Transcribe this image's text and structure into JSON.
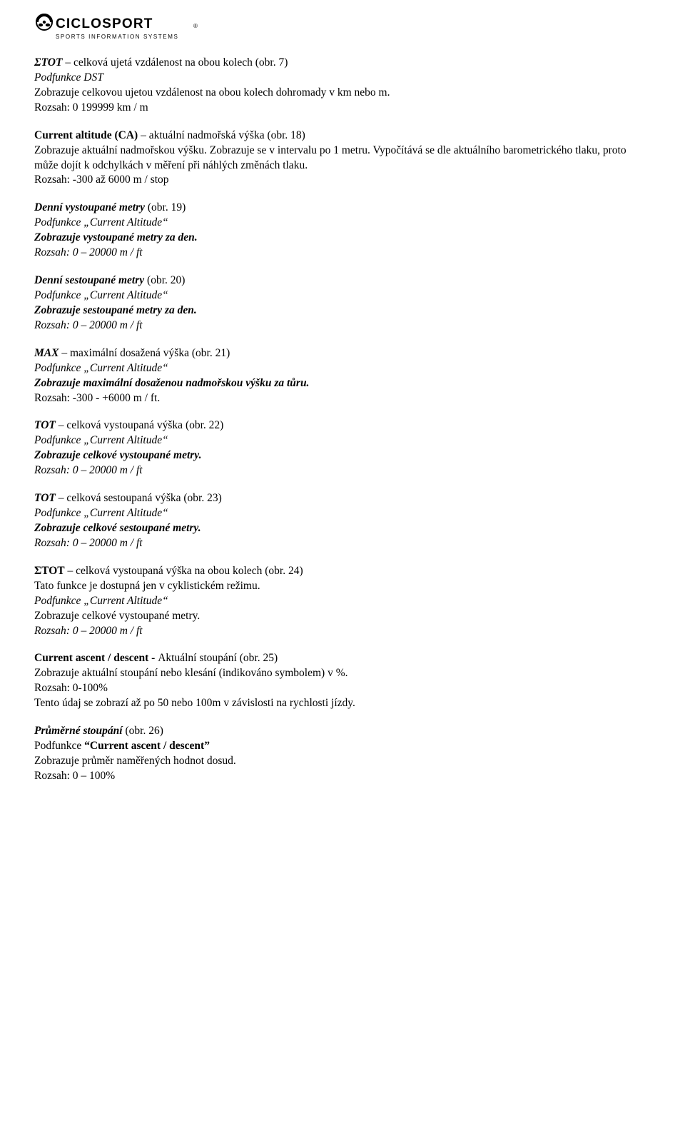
{
  "logo": {
    "brand_top": "CICLOSPORT",
    "brand_sub": "SPORTS INFORMATION SYSTEMS",
    "text_color": "#000000"
  },
  "sections": [
    {
      "lines": [
        {
          "cls": "line",
          "segs": [
            {
              "t": "ΣTOT",
              "cls": "bi"
            },
            {
              "t": " – celková ujetá vzdálenost na obou kolech (obr. 7)",
              "cls": ""
            }
          ]
        },
        {
          "cls": "line",
          "segs": [
            {
              "t": "Podfunkce DST",
              "cls": "i"
            }
          ]
        },
        {
          "cls": "line",
          "segs": [
            {
              "t": "Zobrazuje celkovou ujetou vzdálenost na obou kolech dohromady v km nebo m.",
              "cls": ""
            }
          ]
        },
        {
          "cls": "line",
          "segs": [
            {
              "t": "Rozsah: 0 199999 km / m",
              "cls": ""
            }
          ]
        }
      ]
    },
    {
      "lines": [
        {
          "cls": "line",
          "segs": [
            {
              "t": "Current altitude (CA)",
              "cls": "b"
            },
            {
              "t": " – aktuální nadmořská výška (obr. 18)",
              "cls": ""
            }
          ]
        },
        {
          "cls": "line",
          "segs": [
            {
              "t": "Zobrazuje aktuální nadmořskou výšku. Zobrazuje se v intervalu po 1 metru. Vypočítává se dle aktuálního barometrického tlaku, proto může dojít k odchylkách v měření při náhlých změnách tlaku.",
              "cls": ""
            }
          ]
        },
        {
          "cls": "line",
          "segs": [
            {
              "t": "Rozsah: -300 až 6000 m / stop",
              "cls": ""
            }
          ]
        }
      ]
    },
    {
      "lines": [
        {
          "cls": "line",
          "segs": [
            {
              "t": "Denní vystoupané metry",
              "cls": "bi"
            },
            {
              "t": " (obr. 19)",
              "cls": ""
            }
          ]
        },
        {
          "cls": "line",
          "segs": [
            {
              "t": "Podfunkce „Current Altitude“",
              "cls": "i"
            }
          ]
        },
        {
          "cls": "line",
          "segs": [
            {
              "t": "Zobrazuje vystoupané metry za den.",
              "cls": "bi"
            }
          ]
        },
        {
          "cls": "line",
          "segs": [
            {
              "t": "Rozsah: 0 – 20000 m / ft",
              "cls": "i"
            }
          ]
        }
      ]
    },
    {
      "lines": [
        {
          "cls": "line",
          "segs": [
            {
              "t": "Denní sestoupané metry",
              "cls": "bi"
            },
            {
              "t": " (obr. 20)",
              "cls": ""
            }
          ]
        },
        {
          "cls": "line",
          "segs": [
            {
              "t": "Podfunkce „Current Altitude“",
              "cls": "i"
            }
          ]
        },
        {
          "cls": "line",
          "segs": [
            {
              "t": "Zobrazuje sestoupané metry za den.",
              "cls": "bi"
            }
          ]
        },
        {
          "cls": "line",
          "segs": [
            {
              "t": "Rozsah: 0 – 20000 m / ft",
              "cls": "i"
            }
          ]
        }
      ]
    },
    {
      "lines": [
        {
          "cls": "line",
          "segs": [
            {
              "t": "MAX",
              "cls": "bi"
            },
            {
              "t": " – maximální dosažená výška (obr. 21)",
              "cls": ""
            }
          ]
        },
        {
          "cls": "line",
          "segs": [
            {
              "t": "Podfunkce „Current Altitude“",
              "cls": "i"
            }
          ]
        },
        {
          "cls": "line",
          "segs": [
            {
              "t": "Zobrazuje maximální dosaženou nadmořskou výšku za tůru.",
              "cls": "bi"
            }
          ]
        },
        {
          "cls": "line",
          "segs": [
            {
              "t": "Rozsah: -300 - +6000 m / ft.",
              "cls": ""
            }
          ]
        }
      ]
    },
    {
      "lines": [
        {
          "cls": "line",
          "segs": [
            {
              "t": "TOT",
              "cls": "bi"
            },
            {
              "t": " – celková vystoupaná výška (obr. 22)",
              "cls": ""
            }
          ]
        },
        {
          "cls": "line",
          "segs": [
            {
              "t": "Podfunkce „Current Altitude“",
              "cls": "i"
            }
          ]
        },
        {
          "cls": "line",
          "segs": [
            {
              "t": "Zobrazuje celkové vystoupané metry.",
              "cls": "bi"
            }
          ]
        },
        {
          "cls": "line",
          "segs": [
            {
              "t": "Rozsah: 0 – 20000 m / ft",
              "cls": "i"
            }
          ]
        }
      ]
    },
    {
      "lines": [
        {
          "cls": "line",
          "segs": [
            {
              "t": "TOT",
              "cls": "bi"
            },
            {
              "t": " – celková sestoupaná výška (obr. 23)",
              "cls": ""
            }
          ]
        },
        {
          "cls": "line",
          "segs": [
            {
              "t": "Podfunkce „Current Altitude“",
              "cls": "i"
            }
          ]
        },
        {
          "cls": "line",
          "segs": [
            {
              "t": "Zobrazuje celkové sestoupané metry.",
              "cls": "bi"
            }
          ]
        },
        {
          "cls": "line",
          "segs": [
            {
              "t": "Rozsah: 0 – 20000 m / ft",
              "cls": "i"
            }
          ]
        }
      ]
    },
    {
      "lines": [
        {
          "cls": "line",
          "segs": [
            {
              "t": "ΣTOT",
              "cls": "b"
            },
            {
              "t": " – celková vystoupaná výška na obou kolech (obr. 24)",
              "cls": ""
            }
          ]
        },
        {
          "cls": "line",
          "segs": [
            {
              "t": "Tato funkce je dostupná jen v cyklistickém režimu.",
              "cls": ""
            }
          ]
        },
        {
          "cls": "line",
          "segs": [
            {
              "t": "Podfunkce „Current Altitude“",
              "cls": "i"
            }
          ]
        },
        {
          "cls": "line",
          "segs": [
            {
              "t": "Zobrazuje celkové vystoupané metry.",
              "cls": ""
            }
          ]
        },
        {
          "cls": "line",
          "segs": [
            {
              "t": "Rozsah: 0 – 20000 m / ft",
              "cls": "i"
            }
          ]
        }
      ]
    },
    {
      "lines": [
        {
          "cls": "line",
          "segs": [
            {
              "t": "Current ascent / descent - ",
              "cls": "b"
            },
            {
              "t": "Aktuální stoupání (obr. 25)",
              "cls": ""
            }
          ]
        },
        {
          "cls": "line",
          "segs": [
            {
              "t": "Zobrazuje aktuální stoupání nebo klesání (indikováno symbolem) v %.",
              "cls": ""
            }
          ]
        },
        {
          "cls": "line",
          "segs": [
            {
              "t": "Rozsah: 0-100%",
              "cls": ""
            }
          ]
        },
        {
          "cls": "line",
          "segs": [
            {
              "t": "Tento údaj se zobrazí až po 50 nebo 100m v závislosti na rychlosti jízdy.",
              "cls": ""
            }
          ]
        }
      ]
    },
    {
      "lines": [
        {
          "cls": "line",
          "segs": [
            {
              "t": "Průměrné stoupání",
              "cls": "bi"
            },
            {
              "t": " (obr. 26)",
              "cls": ""
            }
          ]
        },
        {
          "cls": "line",
          "segs": [
            {
              "t": "Podfunkce ",
              "cls": ""
            },
            {
              "t": "“Current ascent / descent”",
              "cls": "b"
            }
          ]
        },
        {
          "cls": "line",
          "segs": [
            {
              "t": "Zobrazuje průměr naměřených hodnot dosud.",
              "cls": ""
            }
          ]
        },
        {
          "cls": "line",
          "segs": [
            {
              "t": "Rozsah: 0 – 100%",
              "cls": ""
            }
          ]
        }
      ]
    }
  ]
}
